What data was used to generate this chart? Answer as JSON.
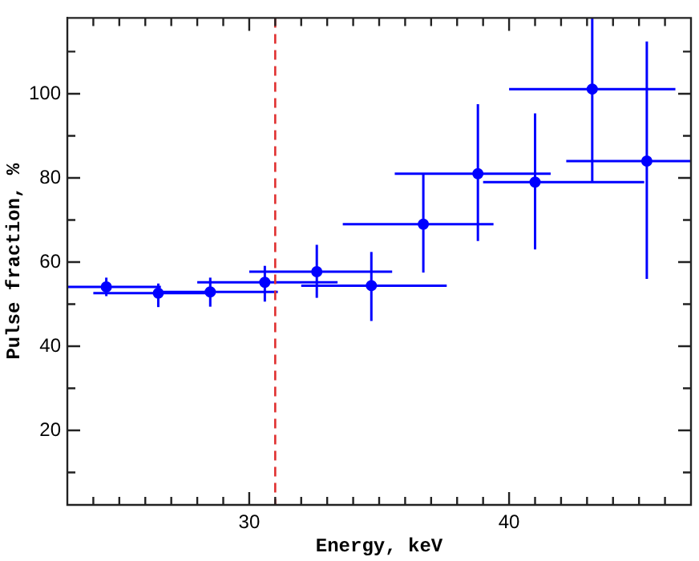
{
  "chart_data": {
    "type": "scatter",
    "xlabel": "Energy, keV",
    "ylabel": "Pulse fraction, %",
    "x": [
      24.5,
      26.5,
      28.5,
      30.6,
      32.6,
      34.7,
      36.7,
      38.8,
      41.0,
      43.2,
      45.3
    ],
    "series": [
      {
        "color": "#0000ff",
        "values": [
          54.1,
          52.6,
          52.9,
          55.2,
          57.7,
          54.4,
          69.0,
          81.0,
          79.0,
          101.1,
          84.0
        ],
        "errors": [
          [
            51.9,
            56.3
          ],
          [
            49.3,
            54.9
          ],
          [
            49.4,
            56.3
          ],
          [
            50.6,
            59.1
          ],
          [
            51.5,
            64.1
          ],
          [
            46.0,
            62.4
          ],
          [
            57.5,
            81.0
          ],
          [
            65.0,
            97.5
          ],
          [
            63.0,
            95.3
          ],
          [
            79.0,
            118
          ],
          [
            56.0,
            112.4
          ]
        ],
        "xerrors": [
          [
            23.0,
            26.6
          ],
          [
            24.0,
            28.7
          ],
          [
            26.4,
            31.1
          ],
          [
            28.0,
            33.4
          ],
          [
            30.0,
            35.5
          ],
          [
            32.0,
            37.6
          ],
          [
            33.6,
            39.4
          ],
          [
            35.6,
            41.6
          ],
          [
            39.0,
            45.2
          ],
          [
            40.0,
            46.4
          ],
          [
            42.2,
            47.0
          ]
        ]
      }
    ],
    "xlim": [
      23,
      47
    ],
    "ylim": [
      2.3,
      118
    ],
    "xticks": [
      {
        "value": 24,
        "label": null
      },
      {
        "value": 25,
        "label": null
      },
      {
        "value": 26,
        "label": null
      },
      {
        "value": 27,
        "label": null
      },
      {
        "value": 28,
        "label": null
      },
      {
        "value": 29,
        "label": null
      },
      30,
      {
        "value": 31,
        "label": null
      },
      {
        "value": 32,
        "label": null
      },
      {
        "value": 33,
        "label": null
      },
      {
        "value": 34,
        "label": null
      },
      {
        "value": 35,
        "label": null
      },
      {
        "value": 36,
        "label": null
      },
      {
        "value": 37,
        "label": null
      },
      {
        "value": 38,
        "label": null
      },
      {
        "value": 39,
        "label": null
      },
      40,
      {
        "value": 41,
        "label": null
      },
      {
        "value": 42,
        "label": null
      },
      {
        "value": 43,
        "label": null
      },
      {
        "value": 44,
        "label": null
      },
      {
        "value": 45,
        "label": null
      },
      {
        "value": 46,
        "label": null
      }
    ],
    "yticks": [
      {
        "value": 10,
        "label": null
      },
      20,
      {
        "value": 30,
        "label": null
      },
      40,
      {
        "value": 50,
        "label": null
      },
      60,
      {
        "value": 70,
        "label": null
      },
      80,
      {
        "value": 90,
        "label": null
      },
      100,
      {
        "value": 110,
        "label": null
      }
    ],
    "ref_lines": [
      {
        "axis": "x",
        "value": 31.0,
        "color": "#e03030",
        "line_style": "dashed"
      }
    ],
    "marker": "circle",
    "grid": false,
    "legend": false
  }
}
